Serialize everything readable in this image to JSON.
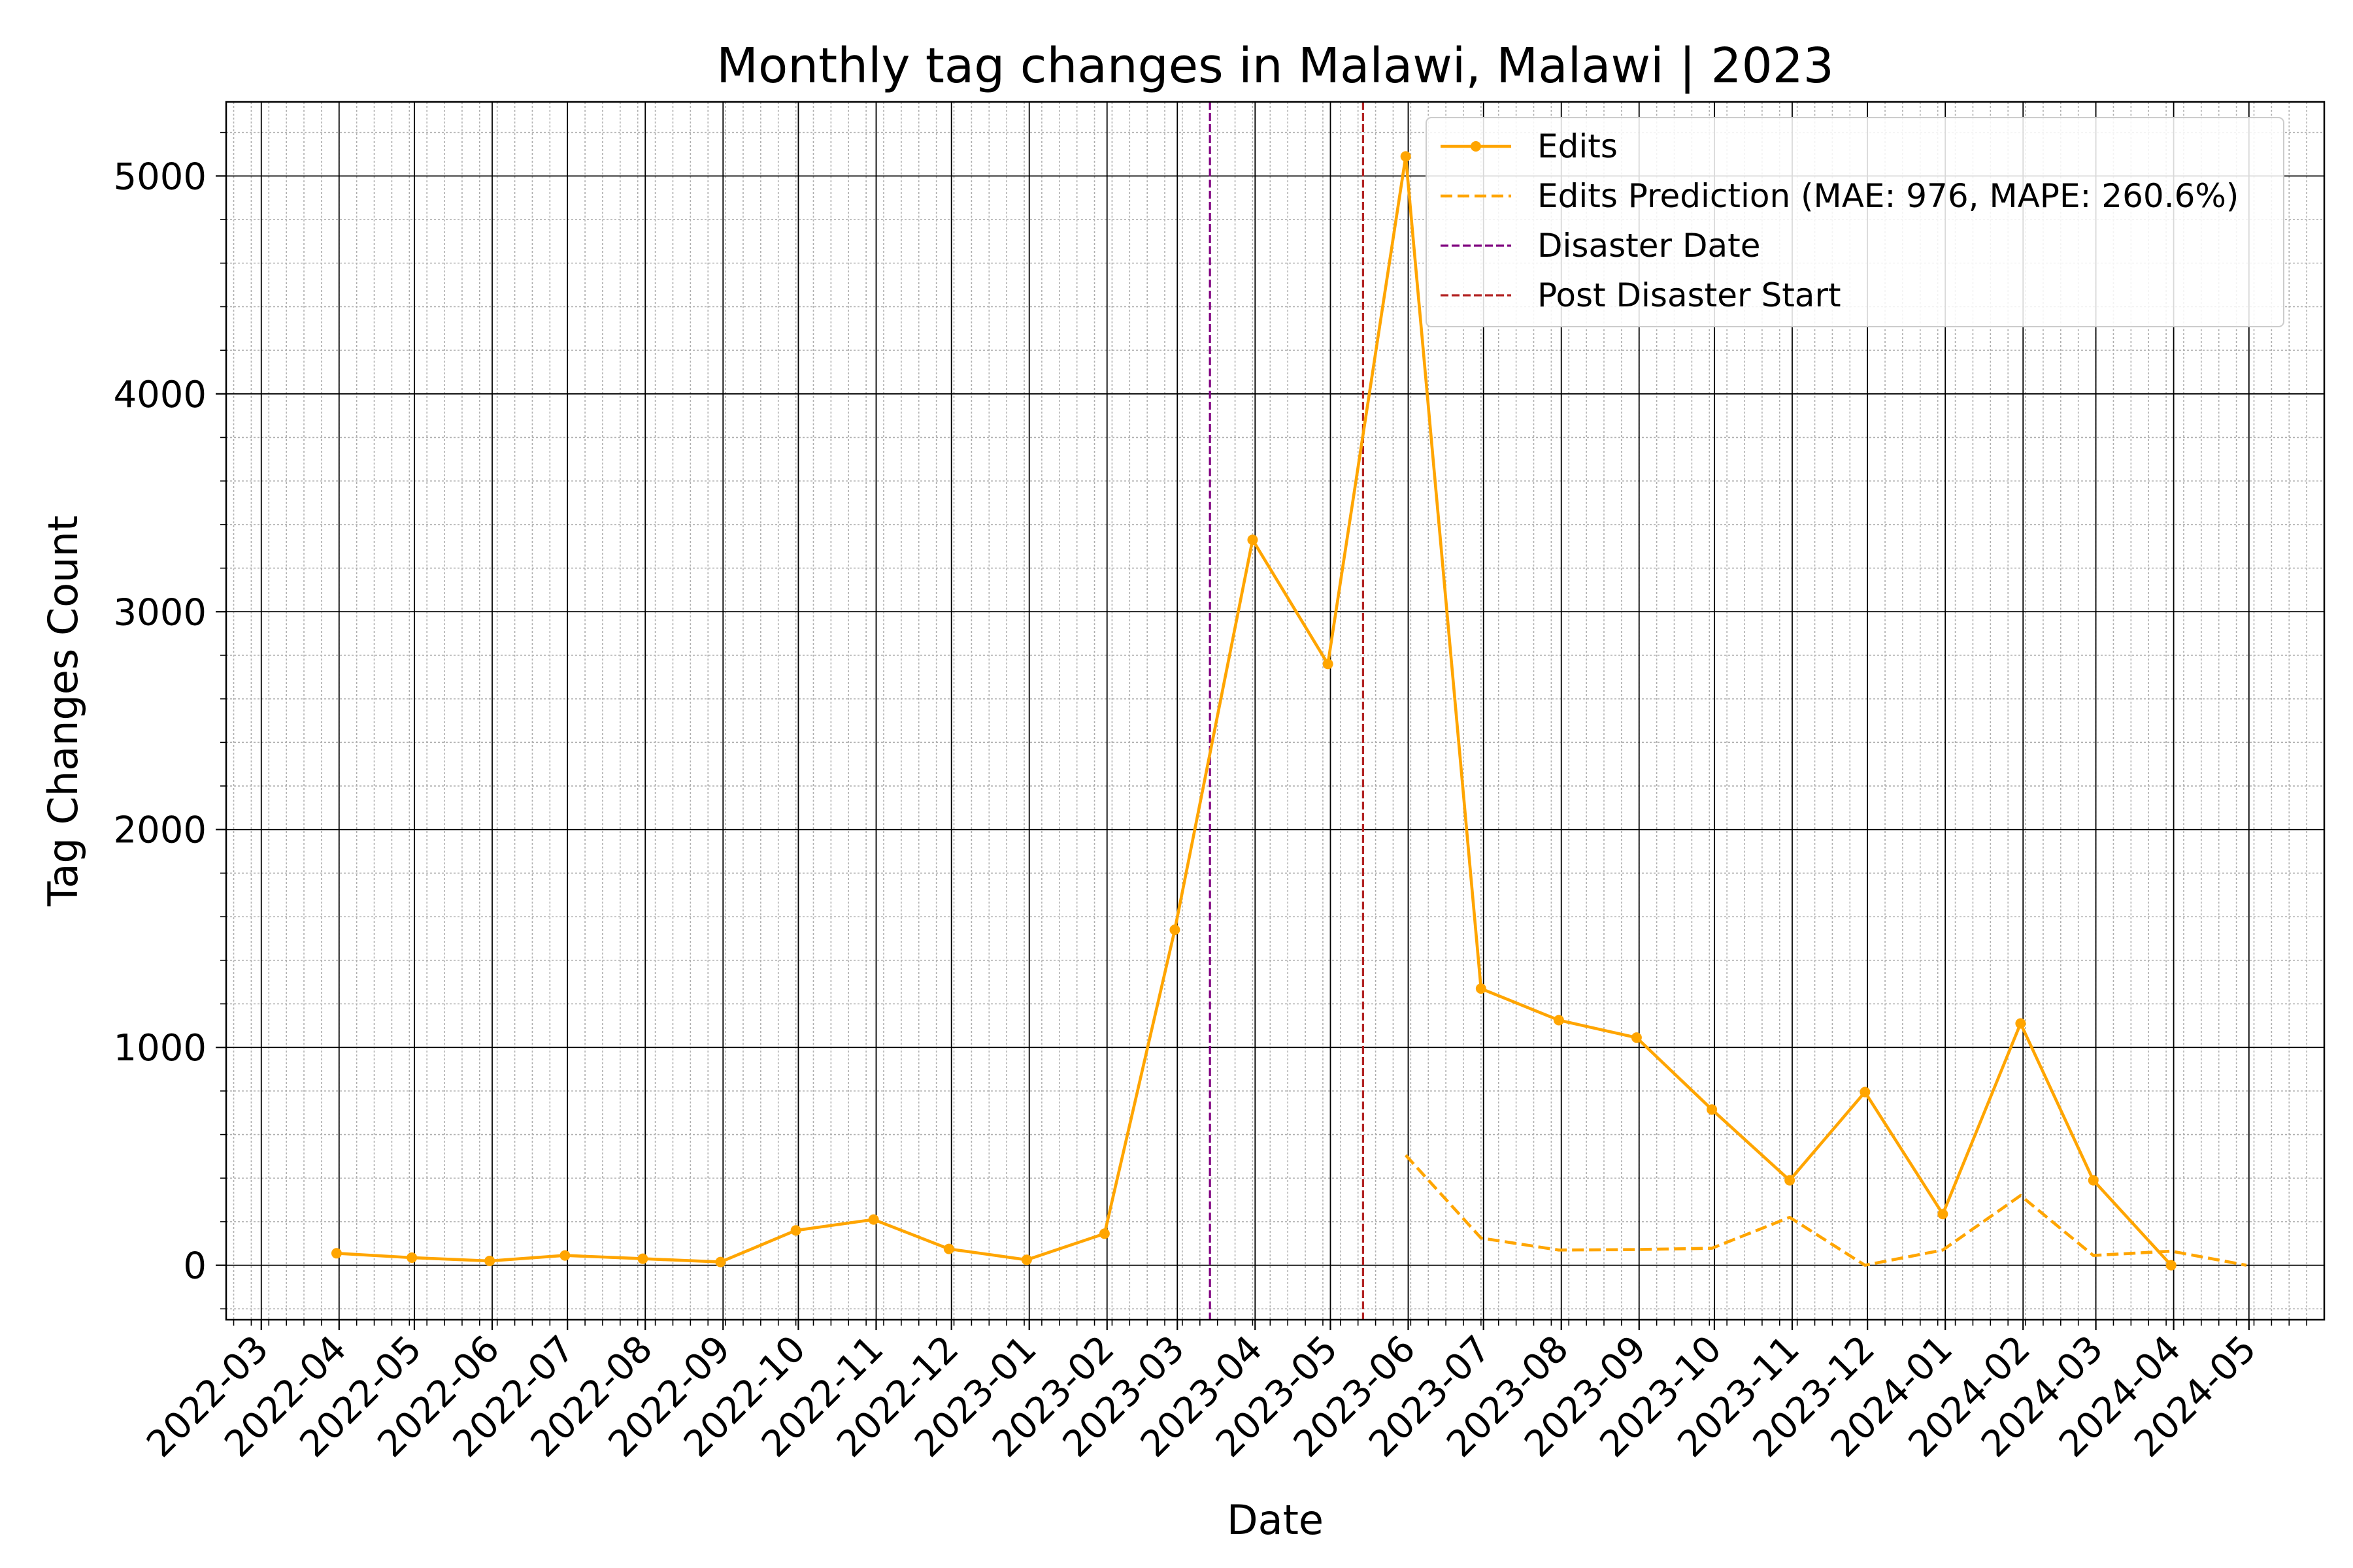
{
  "chart_data": {
    "type": "line",
    "title": "Monthly tag changes in Malawi, Malawi | 2023",
    "xlabel": "Date",
    "ylabel": "Tag Changes Count",
    "x_ticks": [
      "2022-03",
      "2022-04",
      "2022-05",
      "2022-06",
      "2022-07",
      "2022-08",
      "2022-09",
      "2022-10",
      "2022-11",
      "2022-12",
      "2023-01",
      "2023-02",
      "2023-03",
      "2023-04",
      "2023-05",
      "2023-06",
      "2023-07",
      "2023-08",
      "2023-09",
      "2023-10",
      "2023-11",
      "2023-12",
      "2024-01",
      "2024-02",
      "2024-03",
      "2024-04",
      "2024-05"
    ],
    "y_ticks": [
      0,
      1000,
      2000,
      3000,
      4000,
      5000
    ],
    "xlim": [
      "2022-02-15",
      "2024-05-31"
    ],
    "ylim": [
      -250,
      5340
    ],
    "grid": true,
    "legend_position": "top-right",
    "series": [
      {
        "name": "Edits",
        "style": "solid-marker",
        "color": "#ffa500",
        "points": [
          [
            "2022-03-31",
            55
          ],
          [
            "2022-04-30",
            35
          ],
          [
            "2022-05-31",
            20
          ],
          [
            "2022-06-30",
            45
          ],
          [
            "2022-07-31",
            30
          ],
          [
            "2022-08-31",
            15
          ],
          [
            "2022-09-30",
            160
          ],
          [
            "2022-10-31",
            210
          ],
          [
            "2022-11-30",
            75
          ],
          [
            "2022-12-31",
            25
          ],
          [
            "2023-01-31",
            145
          ],
          [
            "2023-02-28",
            1540
          ],
          [
            "2023-03-31",
            3330
          ],
          [
            "2023-04-30",
            2760
          ],
          [
            "2023-05-31",
            5090
          ],
          [
            "2023-06-30",
            1270
          ],
          [
            "2023-07-31",
            1125
          ],
          [
            "2023-08-31",
            1045
          ],
          [
            "2023-09-30",
            715
          ],
          [
            "2023-10-31",
            390
          ],
          [
            "2023-11-30",
            795
          ],
          [
            "2023-12-31",
            235
          ],
          [
            "2024-01-31",
            1110
          ],
          [
            "2024-02-29",
            390
          ],
          [
            "2024-03-31",
            0
          ]
        ]
      },
      {
        "name": "Edits Prediction (MAE: 976, MAPE: 260.6%)",
        "style": "dashed",
        "color": "#ffa500",
        "points": [
          [
            "2023-05-31",
            505
          ],
          [
            "2023-06-30",
            125
          ],
          [
            "2023-07-31",
            70
          ],
          [
            "2023-08-31",
            72
          ],
          [
            "2023-09-30",
            78
          ],
          [
            "2023-10-31",
            220
          ],
          [
            "2023-11-30",
            0
          ],
          [
            "2023-12-31",
            70
          ],
          [
            "2024-01-31",
            320
          ],
          [
            "2024-02-29",
            45
          ],
          [
            "2024-03-31",
            65
          ],
          [
            "2024-04-30",
            0
          ]
        ]
      }
    ],
    "vertical_lines": [
      {
        "name": "Disaster Date",
        "date": "2023-03-14",
        "color": "#800080"
      },
      {
        "name": "Post Disaster Start",
        "date": "2023-05-14",
        "color": "#b22222"
      }
    ]
  }
}
